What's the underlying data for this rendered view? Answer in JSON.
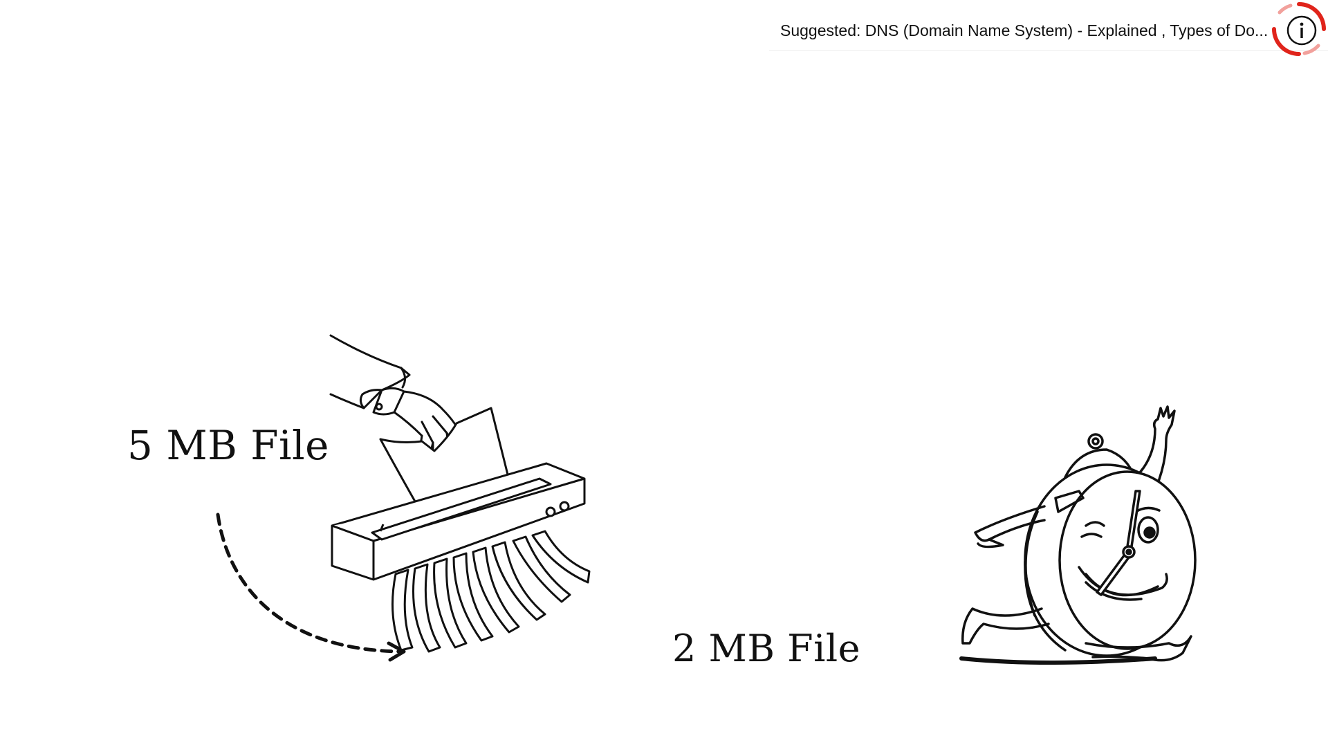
{
  "suggestion": {
    "text": "Suggested: DNS (Domain Name System) - Explained , Types of Do..."
  },
  "info_button": {
    "icon": "info-icon",
    "accent_color": "#e0241b"
  },
  "scene": {
    "source_label": "5 MB File",
    "result_label": "2 MB File",
    "illustrations": [
      "shredder-illustration",
      "running-clock-illustration",
      "dashed-arrow"
    ]
  }
}
